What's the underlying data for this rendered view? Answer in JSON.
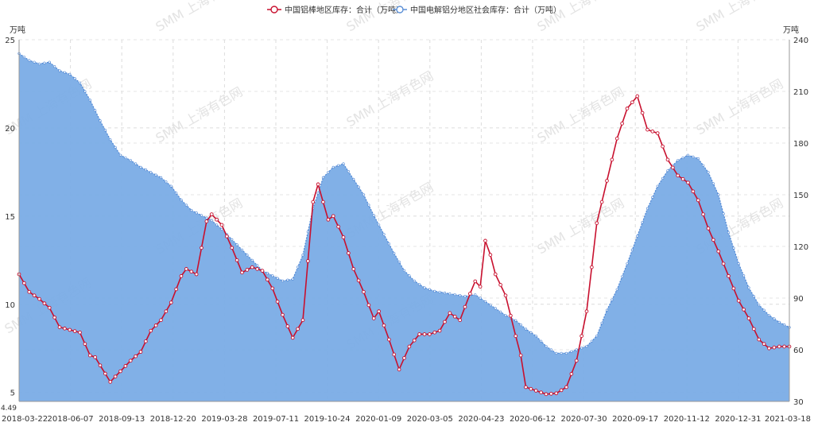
{
  "chart_data": {
    "type": "line+area",
    "legend": [
      {
        "name": "中国铝棒地区库存：合计（万吨）",
        "color": "#c8102e",
        "marker": "circle-line"
      },
      {
        "name": "中国电解铝分地区社会库存：合计（万吨）",
        "color": "#5b8fd6",
        "marker": "circle-line"
      }
    ],
    "left_axis": {
      "unit": "万吨",
      "ticks": [
        "5",
        "10",
        "15",
        "20",
        "25"
      ],
      "min_label": "4.49",
      "range": [
        4.49,
        25
      ]
    },
    "right_axis": {
      "unit": "万吨",
      "ticks": [
        "30",
        "60",
        "90",
        "120",
        "150",
        "180",
        "210",
        "240"
      ],
      "range": [
        30,
        240
      ]
    },
    "x_labels": [
      "2018-03-22",
      "2018-06-07",
      "2018-09-13",
      "2018-12-20",
      "2019-03-28",
      "2019-07-11",
      "2019-10-24",
      "2020-01-09",
      "2020-03-05",
      "2020-04-23",
      "2020-06-12",
      "2020-07-30",
      "2020-09-17",
      "2020-11-12",
      "2020-12-31",
      "2021-03-18"
    ],
    "watermark": "SMM 上海有色网",
    "x_count": 153,
    "series_bar_keypoints": [
      [
        0,
        11.7
      ],
      [
        2,
        10.7
      ],
      [
        4,
        10.3
      ],
      [
        6,
        9.8
      ],
      [
        8,
        8.7
      ],
      [
        12,
        8.4
      ],
      [
        14,
        7.1
      ],
      [
        15,
        7.0
      ],
      [
        18,
        5.6
      ],
      [
        20,
        6.2
      ],
      [
        22,
        6.8
      ],
      [
        24,
        7.3
      ],
      [
        26,
        8.5
      ],
      [
        28,
        9.1
      ],
      [
        30,
        10.1
      ],
      [
        32,
        11.6
      ],
      [
        33,
        12.0
      ],
      [
        35,
        11.7
      ],
      [
        37,
        14.7
      ],
      [
        38,
        15.1
      ],
      [
        40,
        14.5
      ],
      [
        42,
        13.2
      ],
      [
        44,
        11.8
      ],
      [
        46,
        12.1
      ],
      [
        48,
        11.9
      ],
      [
        50,
        10.9
      ],
      [
        52,
        9.4
      ],
      [
        54,
        8.1
      ],
      [
        56,
        9.1
      ],
      [
        58,
        15.8
      ],
      [
        59,
        16.8
      ],
      [
        61,
        14.8
      ],
      [
        62,
        15.0
      ],
      [
        64,
        13.8
      ],
      [
        66,
        12.0
      ],
      [
        68,
        10.7
      ],
      [
        70,
        9.2
      ],
      [
        71,
        9.6
      ],
      [
        73,
        8.0
      ],
      [
        75,
        6.3
      ],
      [
        77,
        7.6
      ],
      [
        79,
        8.3
      ],
      [
        81,
        8.3
      ],
      [
        83,
        8.5
      ],
      [
        85,
        9.5
      ],
      [
        87,
        9.1
      ],
      [
        89,
        10.6
      ],
      [
        90,
        11.3
      ],
      [
        91,
        11.0
      ],
      [
        92,
        13.6
      ],
      [
        93,
        12.8
      ],
      [
        94,
        11.7
      ],
      [
        96,
        10.5
      ],
      [
        98,
        8.2
      ],
      [
        99,
        7.1
      ],
      [
        100,
        5.3
      ],
      [
        102,
        5.1
      ],
      [
        104,
        4.9
      ],
      [
        106,
        4.95
      ],
      [
        108,
        5.3
      ],
      [
        110,
        6.8
      ],
      [
        112,
        9.6
      ],
      [
        114,
        14.6
      ],
      [
        116,
        17.0
      ],
      [
        118,
        19.4
      ],
      [
        120,
        21.1
      ],
      [
        122,
        21.8
      ],
      [
        124,
        19.9
      ],
      [
        126,
        19.7
      ],
      [
        128,
        18.2
      ],
      [
        130,
        17.3
      ],
      [
        132,
        16.9
      ],
      [
        134,
        15.9
      ],
      [
        136,
        14.3
      ],
      [
        138,
        13.0
      ],
      [
        140,
        11.6
      ],
      [
        142,
        10.2
      ],
      [
        144,
        9.2
      ],
      [
        146,
        8.0
      ],
      [
        148,
        7.5
      ],
      [
        150,
        7.6
      ],
      [
        152,
        7.6
      ]
    ],
    "series_ingot_keypoints": [
      [
        0,
        232
      ],
      [
        2,
        228
      ],
      [
        4,
        226
      ],
      [
        6,
        227
      ],
      [
        8,
        222
      ],
      [
        10,
        220
      ],
      [
        12,
        215
      ],
      [
        14,
        205
      ],
      [
        16,
        193
      ],
      [
        18,
        182
      ],
      [
        20,
        173
      ],
      [
        22,
        170
      ],
      [
        24,
        166
      ],
      [
        26,
        163
      ],
      [
        28,
        160
      ],
      [
        30,
        155
      ],
      [
        32,
        147
      ],
      [
        34,
        141
      ],
      [
        36,
        138
      ],
      [
        38,
        135
      ],
      [
        40,
        130
      ],
      [
        42,
        124
      ],
      [
        44,
        118
      ],
      [
        46,
        112
      ],
      [
        48,
        106
      ],
      [
        50,
        103
      ],
      [
        52,
        100
      ],
      [
        54,
        101
      ],
      [
        56,
        115
      ],
      [
        58,
        142
      ],
      [
        60,
        160
      ],
      [
        62,
        166
      ],
      [
        64,
        168
      ],
      [
        66,
        159
      ],
      [
        68,
        150
      ],
      [
        70,
        138
      ],
      [
        72,
        127
      ],
      [
        74,
        116
      ],
      [
        76,
        106
      ],
      [
        78,
        100
      ],
      [
        80,
        96
      ],
      [
        82,
        94
      ],
      [
        84,
        93
      ],
      [
        86,
        92
      ],
      [
        88,
        91
      ],
      [
        90,
        92
      ],
      [
        92,
        88
      ],
      [
        94,
        84
      ],
      [
        96,
        80
      ],
      [
        98,
        77
      ],
      [
        100,
        72
      ],
      [
        102,
        68
      ],
      [
        104,
        62
      ],
      [
        106,
        58
      ],
      [
        108,
        58
      ],
      [
        110,
        60
      ],
      [
        112,
        62
      ],
      [
        114,
        68
      ],
      [
        116,
        83
      ],
      [
        118,
        95
      ],
      [
        120,
        110
      ],
      [
        122,
        126
      ],
      [
        124,
        142
      ],
      [
        126,
        155
      ],
      [
        128,
        164
      ],
      [
        130,
        170
      ],
      [
        132,
        173
      ],
      [
        134,
        171
      ],
      [
        136,
        163
      ],
      [
        138,
        150
      ],
      [
        140,
        128
      ],
      [
        142,
        110
      ],
      [
        144,
        96
      ],
      [
        146,
        86
      ],
      [
        148,
        80
      ],
      [
        150,
        76
      ],
      [
        152,
        73
      ]
    ]
  }
}
